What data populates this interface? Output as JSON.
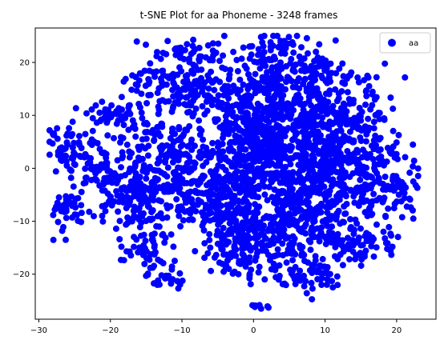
{
  "chart_data": {
    "type": "scatter",
    "title": "t-SNE Plot for aa Phoneme - 3248 frames",
    "xlabel": "",
    "ylabel": "",
    "xlim": [
      -30.5,
      25.5
    ],
    "ylim": [
      -28.5,
      26.5
    ],
    "x_ticks": [
      -30,
      -20,
      -10,
      0,
      10,
      20
    ],
    "y_ticks": [
      -20,
      -10,
      0,
      10,
      20
    ],
    "grid": false,
    "legend_position": "top-right",
    "series": [
      {
        "name": "aa",
        "color": "#0000ff",
        "marker": "circle",
        "n_points": 3248,
        "clusters": [
          {
            "cx": 0,
            "cy": 5,
            "sx": 3.5,
            "sy": 6,
            "n": 520
          },
          {
            "cx": 10,
            "cy": 5,
            "sx": 4.5,
            "sy": 7,
            "n": 620
          },
          {
            "cx": 8,
            "cy": -10,
            "sx": 4,
            "sy": 6,
            "n": 280
          },
          {
            "cx": -1,
            "cy": -12,
            "sx": 3,
            "sy": 4,
            "n": 250
          },
          {
            "cx": -13,
            "cy": 2,
            "sx": 4,
            "sy": 4,
            "n": 200
          },
          {
            "cx": -17,
            "cy": -5,
            "sx": 3,
            "sy": 3,
            "n": 130
          },
          {
            "cx": -10,
            "cy": 15,
            "sx": 4,
            "sy": 3,
            "n": 150
          },
          {
            "cx": 3,
            "cy": 17,
            "sx": 3,
            "sy": 3,
            "n": 110
          },
          {
            "cx": -7,
            "cy": -6,
            "sx": 3,
            "sy": 4,
            "n": 140
          },
          {
            "cx": -25,
            "cy": 4,
            "sx": 2,
            "sy": 2,
            "n": 60
          },
          {
            "cx": -26,
            "cy": -8,
            "sx": 1.5,
            "sy": 2,
            "n": 40
          },
          {
            "cx": -22,
            "cy": 0,
            "sx": 2,
            "sy": 1.5,
            "n": 40
          },
          {
            "cx": -20,
            "cy": 10,
            "sx": 2,
            "sy": 1,
            "n": 40
          },
          {
            "cx": -15,
            "cy": -16,
            "sx": 2,
            "sy": 2,
            "n": 50
          },
          {
            "cx": -9,
            "cy": 22,
            "sx": 2.5,
            "sy": 1.2,
            "n": 40
          },
          {
            "cx": 2,
            "cy": 22,
            "sx": 2,
            "sy": 1.5,
            "n": 40
          },
          {
            "cx": 18,
            "cy": -2,
            "sx": 2.5,
            "sy": 4,
            "n": 90
          },
          {
            "cx": 15,
            "cy": -14,
            "sx": 3,
            "sy": 2,
            "n": 60
          },
          {
            "cx": 7,
            "cy": -20,
            "sx": 2,
            "sy": 1.5,
            "n": 40
          },
          {
            "cx": -12,
            "cy": -21,
            "sx": 1.2,
            "sy": 1,
            "n": 20
          },
          {
            "cx": 0.5,
            "cy": -26,
            "sx": 0.8,
            "sy": 0.4,
            "n": 8
          },
          {
            "cx": 21,
            "cy": -4,
            "sx": 1,
            "sy": 1.5,
            "n": 15
          },
          {
            "cx": -28,
            "cy": 7,
            "sx": 0.5,
            "sy": 0.5,
            "n": 5
          },
          {
            "cx": 10,
            "cy": 18,
            "sx": 2,
            "sy": 1,
            "n": 30
          }
        ]
      }
    ]
  }
}
